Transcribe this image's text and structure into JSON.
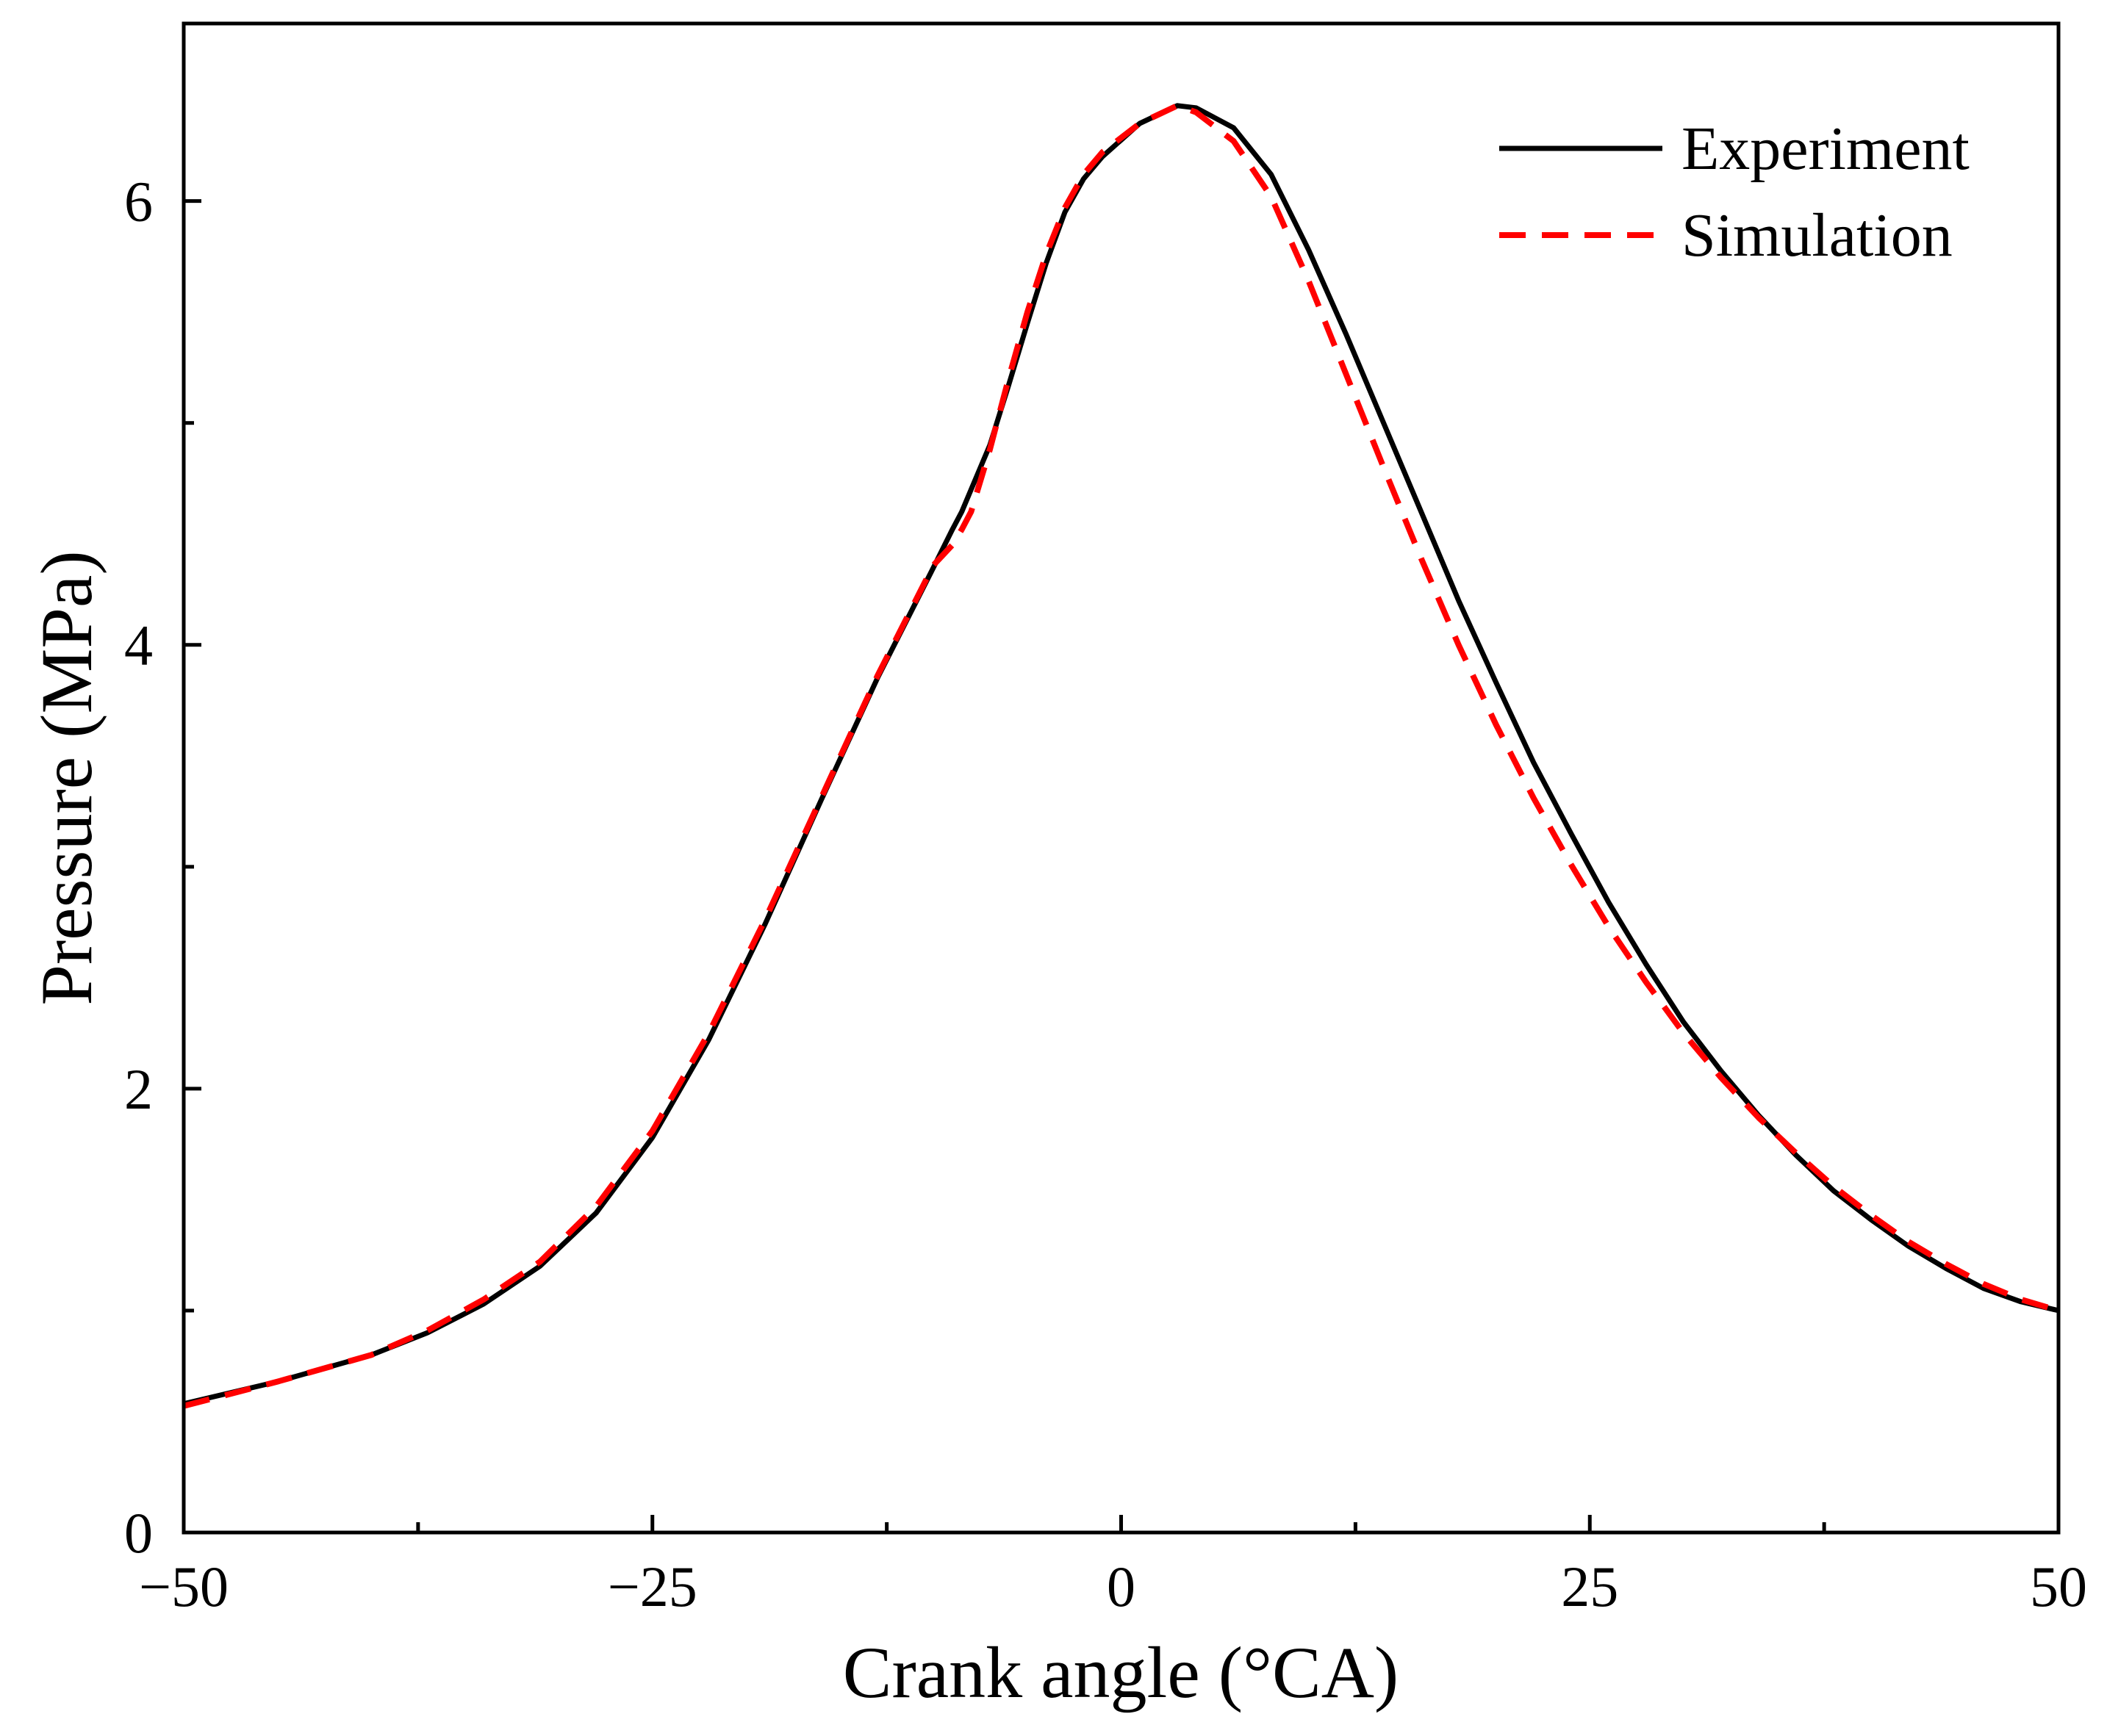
{
  "chart_data": {
    "type": "line",
    "title": "",
    "xlabel": "Crank angle (°CA)",
    "ylabel": "Pressure (MPa)",
    "xlim": [
      -50,
      50
    ],
    "ylim": [
      0,
      6.8
    ],
    "x_major_ticks": [
      -50,
      -25,
      0,
      25,
      50
    ],
    "x_minor_ticks": [
      -37.5,
      -12.5,
      12.5,
      37.5
    ],
    "x_tick_labels": [
      "−50",
      "−25",
      "0",
      "25",
      "50"
    ],
    "y_major_ticks": [
      0,
      2,
      4,
      6
    ],
    "y_minor_ticks": [
      1,
      3,
      5
    ],
    "y_tick_labels": [
      "0",
      "2",
      "4",
      "6"
    ],
    "grid": false,
    "legend_position": "top-right",
    "series": [
      {
        "name": "Experiment",
        "color": "#000000",
        "style": "solid",
        "x": [
          -50,
          -45,
          -40,
          -37,
          -34,
          -31,
          -28,
          -25,
          -22,
          -19,
          -16,
          -13,
          -10,
          -9,
          -8.5,
          -8,
          -7,
          -6,
          -5,
          -4,
          -3,
          -2,
          -1,
          1,
          3,
          4,
          6,
          8,
          10,
          12,
          14,
          16,
          18,
          20,
          22,
          24,
          26,
          28,
          30,
          32,
          34,
          36,
          38,
          40,
          42,
          44,
          46,
          48,
          50
        ],
        "y": [
          0.58,
          0.68,
          0.8,
          0.9,
          1.03,
          1.2,
          1.44,
          1.78,
          2.22,
          2.74,
          3.3,
          3.85,
          4.35,
          4.52,
          4.6,
          4.7,
          4.9,
          5.17,
          5.45,
          5.72,
          5.95,
          6.1,
          6.2,
          6.35,
          6.43,
          6.42,
          6.33,
          6.12,
          5.78,
          5.4,
          5.0,
          4.6,
          4.2,
          3.83,
          3.47,
          3.15,
          2.84,
          2.56,
          2.3,
          2.08,
          1.88,
          1.7,
          1.54,
          1.41,
          1.29,
          1.19,
          1.1,
          1.04,
          1.0
        ]
      },
      {
        "name": "Simulation",
        "color": "#ff0000",
        "style": "dashed",
        "x": [
          -50,
          -45,
          -40,
          -37,
          -34,
          -31,
          -28,
          -25,
          -22,
          -19,
          -16,
          -13,
          -10,
          -9,
          -8.5,
          -8,
          -7,
          -6,
          -5,
          -4,
          -3,
          -2,
          -1,
          1,
          3,
          4,
          6,
          8,
          10,
          12,
          14,
          16,
          18,
          20,
          22,
          24,
          26,
          28,
          30,
          32,
          34,
          36,
          38,
          40,
          42,
          44,
          46,
          48,
          50
        ],
        "y": [
          0.57,
          0.68,
          0.8,
          0.91,
          1.05,
          1.22,
          1.47,
          1.81,
          2.25,
          2.76,
          3.31,
          3.86,
          4.36,
          4.45,
          4.52,
          4.6,
          4.88,
          5.2,
          5.5,
          5.76,
          5.97,
          6.12,
          6.22,
          6.35,
          6.43,
          6.4,
          6.27,
          6.02,
          5.64,
          5.22,
          4.8,
          4.39,
          4.0,
          3.64,
          3.31,
          3.01,
          2.73,
          2.48,
          2.25,
          2.05,
          1.87,
          1.71,
          1.56,
          1.43,
          1.31,
          1.21,
          1.12,
          1.05,
          1.0
        ]
      }
    ]
  }
}
